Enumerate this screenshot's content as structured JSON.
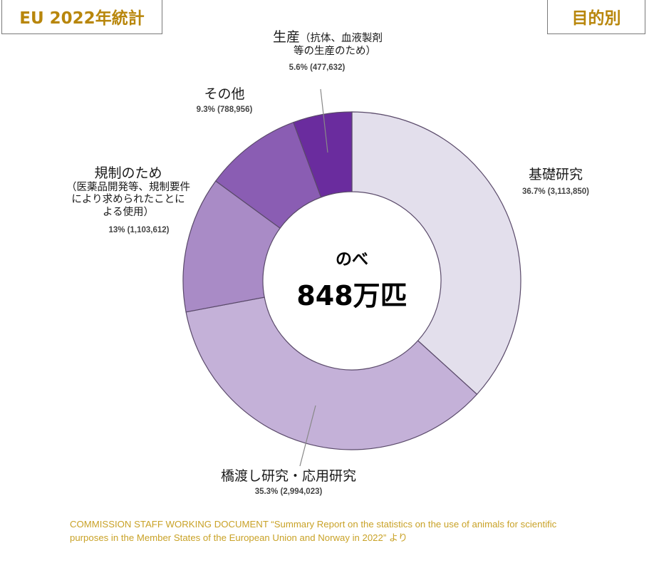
{
  "header": {
    "left_tag": "EU 2022年統計",
    "right_tag": "目的別"
  },
  "center": {
    "line1": "のべ",
    "line2": "848万匹"
  },
  "labels": {
    "basic": {
      "name": "基礎研究",
      "value": "36.7% (3,113,850)"
    },
    "translational": {
      "name": "橋渡し研究・応用研究",
      "value": "35.3% (2,994,023)"
    },
    "regulatory": {
      "name": "規制のため",
      "sub1": "（医薬品開発等、規制要件",
      "sub2": "により求められたことに",
      "sub3": "よる使用）",
      "value": "13% (1,103,612)"
    },
    "other": {
      "name": "その他",
      "value": "9.3% (788,956)"
    },
    "production": {
      "name": "生産",
      "sub1": "（抗体、血液製剤",
      "sub2": "等の生産のため）",
      "value": "5.6% (477,632)"
    }
  },
  "source": {
    "line1": "COMMISSION STAFF WORKING DOCUMENT “Summary Report on the statistics on the use of animals for scientific",
    "line2": "purposes in the Member States of the European Union and Norway in 2022” より"
  },
  "colors": {
    "basic": "#e3dfec",
    "translational": "#c4b1d8",
    "regulatory": "#a98bc6",
    "other": "#8a5db3",
    "production": "#6a2c9e",
    "accent_gold": "#b8860b",
    "source_gold": "#c9a227"
  },
  "chart_data": {
    "type": "pie",
    "variant": "donut",
    "title": "EU 2022年統計 目的別",
    "center_label": "のべ 848万匹",
    "total": 8478073,
    "categories": [
      "基礎研究",
      "橋渡し研究・応用研究",
      "規制のため（医薬品開発等、規制要件により求められたことによる使用）",
      "その他",
      "生産（抗体、血液製剤等の生産のため）"
    ],
    "values": [
      3113850,
      2994023,
      1103612,
      788956,
      477632
    ],
    "percentages": [
      36.7,
      35.3,
      13,
      9.3,
      5.6
    ],
    "colors": [
      "#e3dfec",
      "#c4b1d8",
      "#a98bc6",
      "#8a5db3",
      "#6a2c9e"
    ],
    "start_angle": "12 o'clock, clockwise",
    "legend": "none (direct labels)"
  }
}
